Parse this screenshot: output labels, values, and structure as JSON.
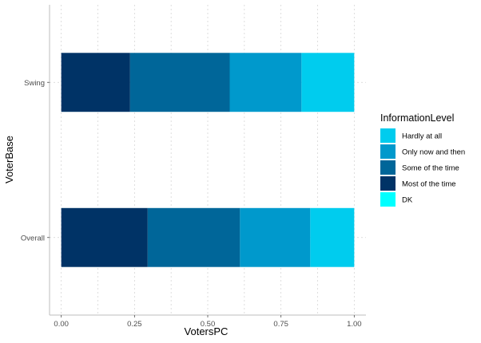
{
  "chart_data": {
    "type": "bar",
    "orientation": "horizontal",
    "stacked": true,
    "xlabel": "VotersPC",
    "ylabel": "VoterBase",
    "xlim": [
      -0.04,
      1.04
    ],
    "xticks": [
      0.0,
      0.25,
      0.5,
      0.75,
      1.0
    ],
    "xtick_labels": [
      "0.00",
      "0.25",
      "0.50",
      "0.75",
      "1.00"
    ],
    "categories": [
      "Swing",
      "Overall"
    ],
    "grid": true,
    "legend_title": "InformationLevel",
    "legend_position": "right",
    "series": [
      {
        "name": "Most of the time",
        "color": "#003366",
        "values": [
          0.235,
          0.295
        ]
      },
      {
        "name": "Some of the time",
        "color": "#006699",
        "values": [
          0.34,
          0.315
        ]
      },
      {
        "name": "Only now and then",
        "color": "#0099cc",
        "values": [
          0.245,
          0.24
        ]
      },
      {
        "name": "Hardly at all",
        "color": "#00ccee",
        "values": [
          0.18,
          0.15
        ]
      },
      {
        "name": "DK",
        "color": "#00ffff",
        "values": [
          0.0,
          0.0
        ]
      }
    ],
    "legend_entries": [
      {
        "label": "Hardly at all",
        "color": "#00ccee"
      },
      {
        "label": "Only now and then",
        "color": "#0099cc"
      },
      {
        "label": "Some of the time",
        "color": "#006699"
      },
      {
        "label": "Most of the time",
        "color": "#003366"
      },
      {
        "label": "DK",
        "color": "#00ffff"
      }
    ]
  }
}
